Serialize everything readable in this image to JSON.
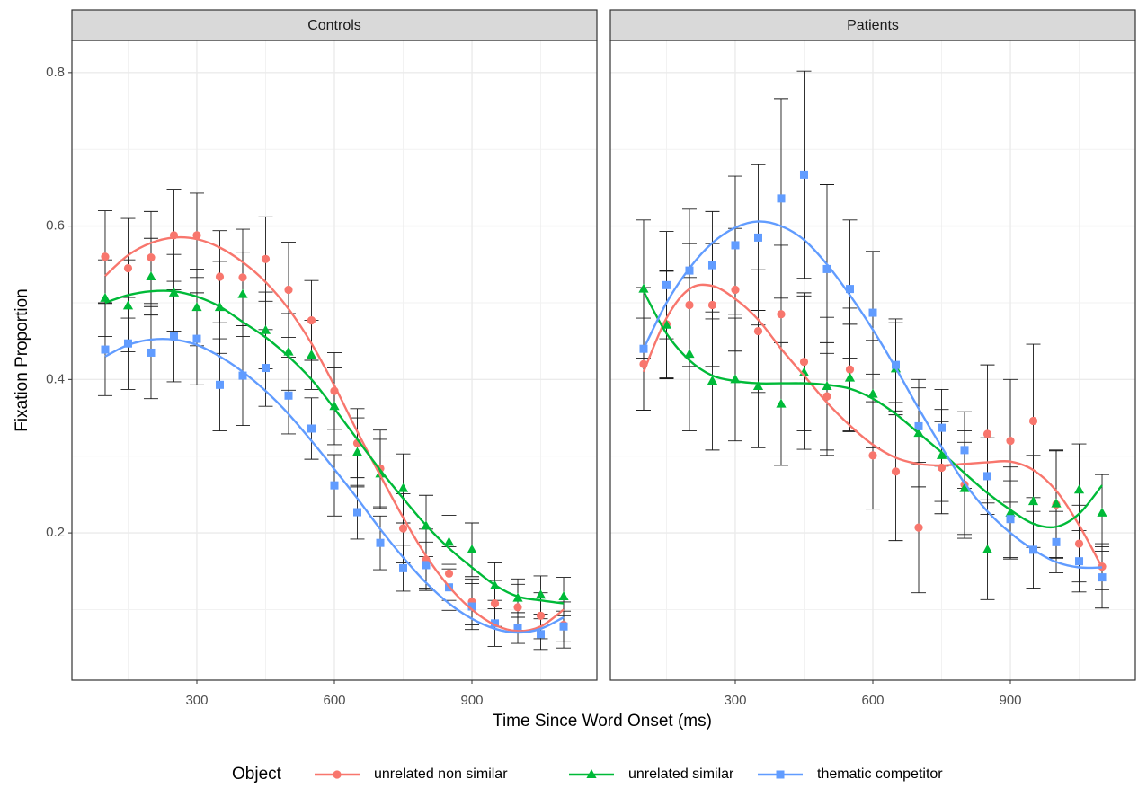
{
  "chart_data": {
    "type": "scatter",
    "x_label": "Time Since Word Onset (ms)",
    "y_label": "Fixation Proportion",
    "legend_title": "Object",
    "grid": true,
    "x": [
      100,
      150,
      200,
      250,
      300,
      350,
      400,
      450,
      500,
      550,
      600,
      650,
      700,
      750,
      800,
      850,
      900,
      950,
      1000,
      1050,
      1100
    ],
    "xlim": [
      27.5,
      1172.5
    ],
    "xticks": [
      300,
      600,
      900
    ],
    "ylim": [
      0.008,
      0.842
    ],
    "yticks": [
      0.2,
      0.4,
      0.6,
      0.8
    ],
    "series": [
      {
        "name": "unrelated non similar",
        "color": "#f8766d",
        "marker": "circle"
      },
      {
        "name": "unrelated similar",
        "color": "#00ba38",
        "marker": "triangle"
      },
      {
        "name": "thematic competitor",
        "color": "#619cff",
        "marker": "square"
      }
    ],
    "panels": [
      {
        "title": "Controls",
        "series": [
          {
            "values": [
              0.56,
              0.545,
              0.559,
              0.588,
              0.588,
              0.534,
              0.533,
              0.557,
              0.517,
              0.477,
              0.385,
              0.317,
              0.284,
              0.206,
              0.165,
              0.147,
              0.11,
              0.108,
              0.103,
              0.092,
              0.08
            ],
            "errors": [
              0.06,
              0.065,
              0.06,
              0.06,
              0.055,
              0.06,
              0.063,
              0.055,
              0.062,
              0.052,
              0.05,
              0.045,
              0.05,
              0.045,
              0.04,
              0.035,
              0.03,
              0.03,
              0.03,
              0.03,
              0.03
            ],
            "trend": [
              0.535,
              0.562,
              0.578,
              0.585,
              0.583,
              0.572,
              0.553,
              0.527,
              0.492,
              0.447,
              0.392,
              0.332,
              0.275,
              0.22,
              0.17,
              0.13,
              0.1,
              0.08,
              0.072,
              0.078,
              0.1
            ]
          },
          {
            "values": [
              0.506,
              0.496,
              0.534,
              0.513,
              0.494,
              0.494,
              0.511,
              0.464,
              0.436,
              0.432,
              0.365,
              0.305,
              0.277,
              0.258,
              0.209,
              0.188,
              0.178,
              0.131,
              0.115,
              0.119,
              0.117
            ],
            "errors": [
              0.05,
              0.06,
              0.05,
              0.05,
              0.05,
              0.06,
              0.055,
              0.05,
              0.05,
              0.045,
              0.05,
              0.045,
              0.045,
              0.045,
              0.04,
              0.035,
              0.035,
              0.03,
              0.025,
              0.025,
              0.025
            ],
            "trend": [
              0.5,
              0.51,
              0.515,
              0.515,
              0.508,
              0.495,
              0.475,
              0.455,
              0.43,
              0.4,
              0.362,
              0.322,
              0.282,
              0.245,
              0.21,
              0.18,
              0.155,
              0.132,
              0.117,
              0.112,
              0.108
            ]
          },
          {
            "values": [
              0.439,
              0.447,
              0.435,
              0.457,
              0.453,
              0.393,
              0.405,
              0.415,
              0.379,
              0.336,
              0.262,
              0.227,
              0.187,
              0.154,
              0.158,
              0.129,
              0.104,
              0.082,
              0.076,
              0.068,
              0.078
            ],
            "errors": [
              0.06,
              0.06,
              0.06,
              0.06,
              0.06,
              0.06,
              0.065,
              0.05,
              0.05,
              0.04,
              0.04,
              0.035,
              0.035,
              0.03,
              0.03,
              0.03,
              0.03,
              0.03,
              0.02,
              0.02,
              0.02
            ],
            "trend": [
              0.43,
              0.445,
              0.452,
              0.452,
              0.445,
              0.43,
              0.41,
              0.385,
              0.355,
              0.32,
              0.283,
              0.245,
              0.205,
              0.168,
              0.135,
              0.108,
              0.088,
              0.075,
              0.07,
              0.075,
              0.09
            ]
          }
        ]
      },
      {
        "title": "Patients",
        "series": [
          {
            "values": [
              0.42,
              0.472,
              0.497,
              0.497,
              0.517,
              0.463,
              0.485,
              0.423,
              0.378,
              0.413,
              0.301,
              0.28,
              0.207,
              0.285,
              0.263,
              0.329,
              0.32,
              0.346,
              0.237,
              0.186,
              0.156
            ],
            "errors": [
              0.06,
              0.07,
              0.08,
              0.08,
              0.08,
              0.08,
              0.09,
              0.09,
              0.07,
              0.08,
              0.07,
              0.09,
              0.085,
              0.06,
              0.07,
              0.09,
              0.08,
              0.1,
              0.07,
              0.05,
              0.03
            ],
            "trend": [
              0.41,
              0.48,
              0.518,
              0.522,
              0.505,
              0.478,
              0.44,
              0.405,
              0.37,
              0.34,
              0.315,
              0.298,
              0.29,
              0.288,
              0.29,
              0.292,
              0.293,
              0.282,
              0.255,
              0.21,
              0.155
            ]
          },
          {
            "values": [
              0.518,
              0.471,
              0.433,
              0.398,
              0.4,
              0.391,
              0.368,
              0.409,
              0.391,
              0.402,
              0.381,
              0.414,
              0.33,
              0.301,
              0.258,
              0.178,
              0.226,
              0.241,
              0.238,
              0.256,
              0.226
            ],
            "errors": [
              0.09,
              0.07,
              0.1,
              0.09,
              0.08,
              0.08,
              0.08,
              0.1,
              0.09,
              0.07,
              0.07,
              0.06,
              0.07,
              0.06,
              0.06,
              0.065,
              0.06,
              0.06,
              0.07,
              0.06,
              0.05
            ],
            "trend": [
              0.515,
              0.46,
              0.425,
              0.405,
              0.398,
              0.395,
              0.395,
              0.395,
              0.393,
              0.388,
              0.375,
              0.355,
              0.33,
              0.305,
              0.278,
              0.252,
              0.23,
              0.212,
              0.208,
              0.225,
              0.262
            ]
          },
          {
            "values": [
              0.44,
              0.523,
              0.542,
              0.549,
              0.575,
              0.585,
              0.636,
              0.667,
              0.544,
              0.518,
              0.487,
              0.419,
              0.339,
              0.337,
              0.308,
              0.274,
              0.218,
              0.178,
              0.188,
              0.163,
              0.142
            ],
            "errors": [
              0.08,
              0.07,
              0.08,
              0.07,
              0.09,
              0.095,
              0.13,
              0.135,
              0.11,
              0.09,
              0.08,
              0.06,
              0.05,
              0.05,
              0.05,
              0.05,
              0.05,
              0.05,
              0.04,
              0.04,
              0.04
            ],
            "trend": [
              0.44,
              0.5,
              0.545,
              0.578,
              0.598,
              0.606,
              0.6,
              0.582,
              0.55,
              0.51,
              0.465,
              0.415,
              0.362,
              0.312,
              0.265,
              0.228,
              0.2,
              0.178,
              0.162,
              0.155,
              0.155
            ]
          }
        ]
      }
    ]
  }
}
